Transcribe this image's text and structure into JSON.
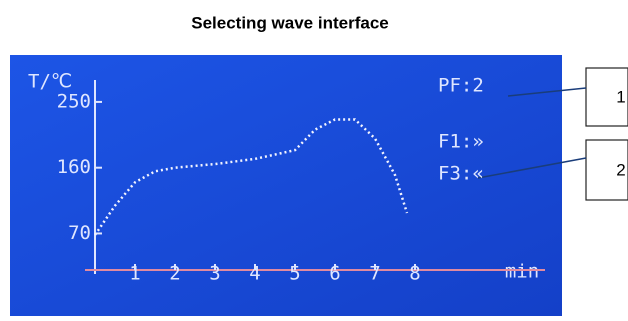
{
  "chart_data": {
    "type": "line",
    "title": "Selecting wave interface",
    "y_label": "T/℃",
    "x_label": "min",
    "x": [
      0,
      0.5,
      1,
      1.5,
      2,
      3,
      4,
      5,
      5.5,
      6,
      6.5,
      7,
      7.5,
      7.8
    ],
    "values": [
      68,
      108,
      140,
      155,
      160,
      165,
      172,
      184,
      212,
      226,
      226,
      200,
      150,
      98
    ],
    "color": "#f2f4ff",
    "xlim": [
      0,
      11.25
    ],
    "xticks": [
      1,
      2,
      3,
      4,
      5,
      6,
      7,
      8
    ],
    "ylim": [
      20,
      280
    ],
    "yticks": [
      70,
      160,
      250
    ],
    "annotations": [
      "PF:2",
      "F1:»",
      "F3:«"
    ],
    "callouts": [
      "1",
      "2"
    ]
  }
}
